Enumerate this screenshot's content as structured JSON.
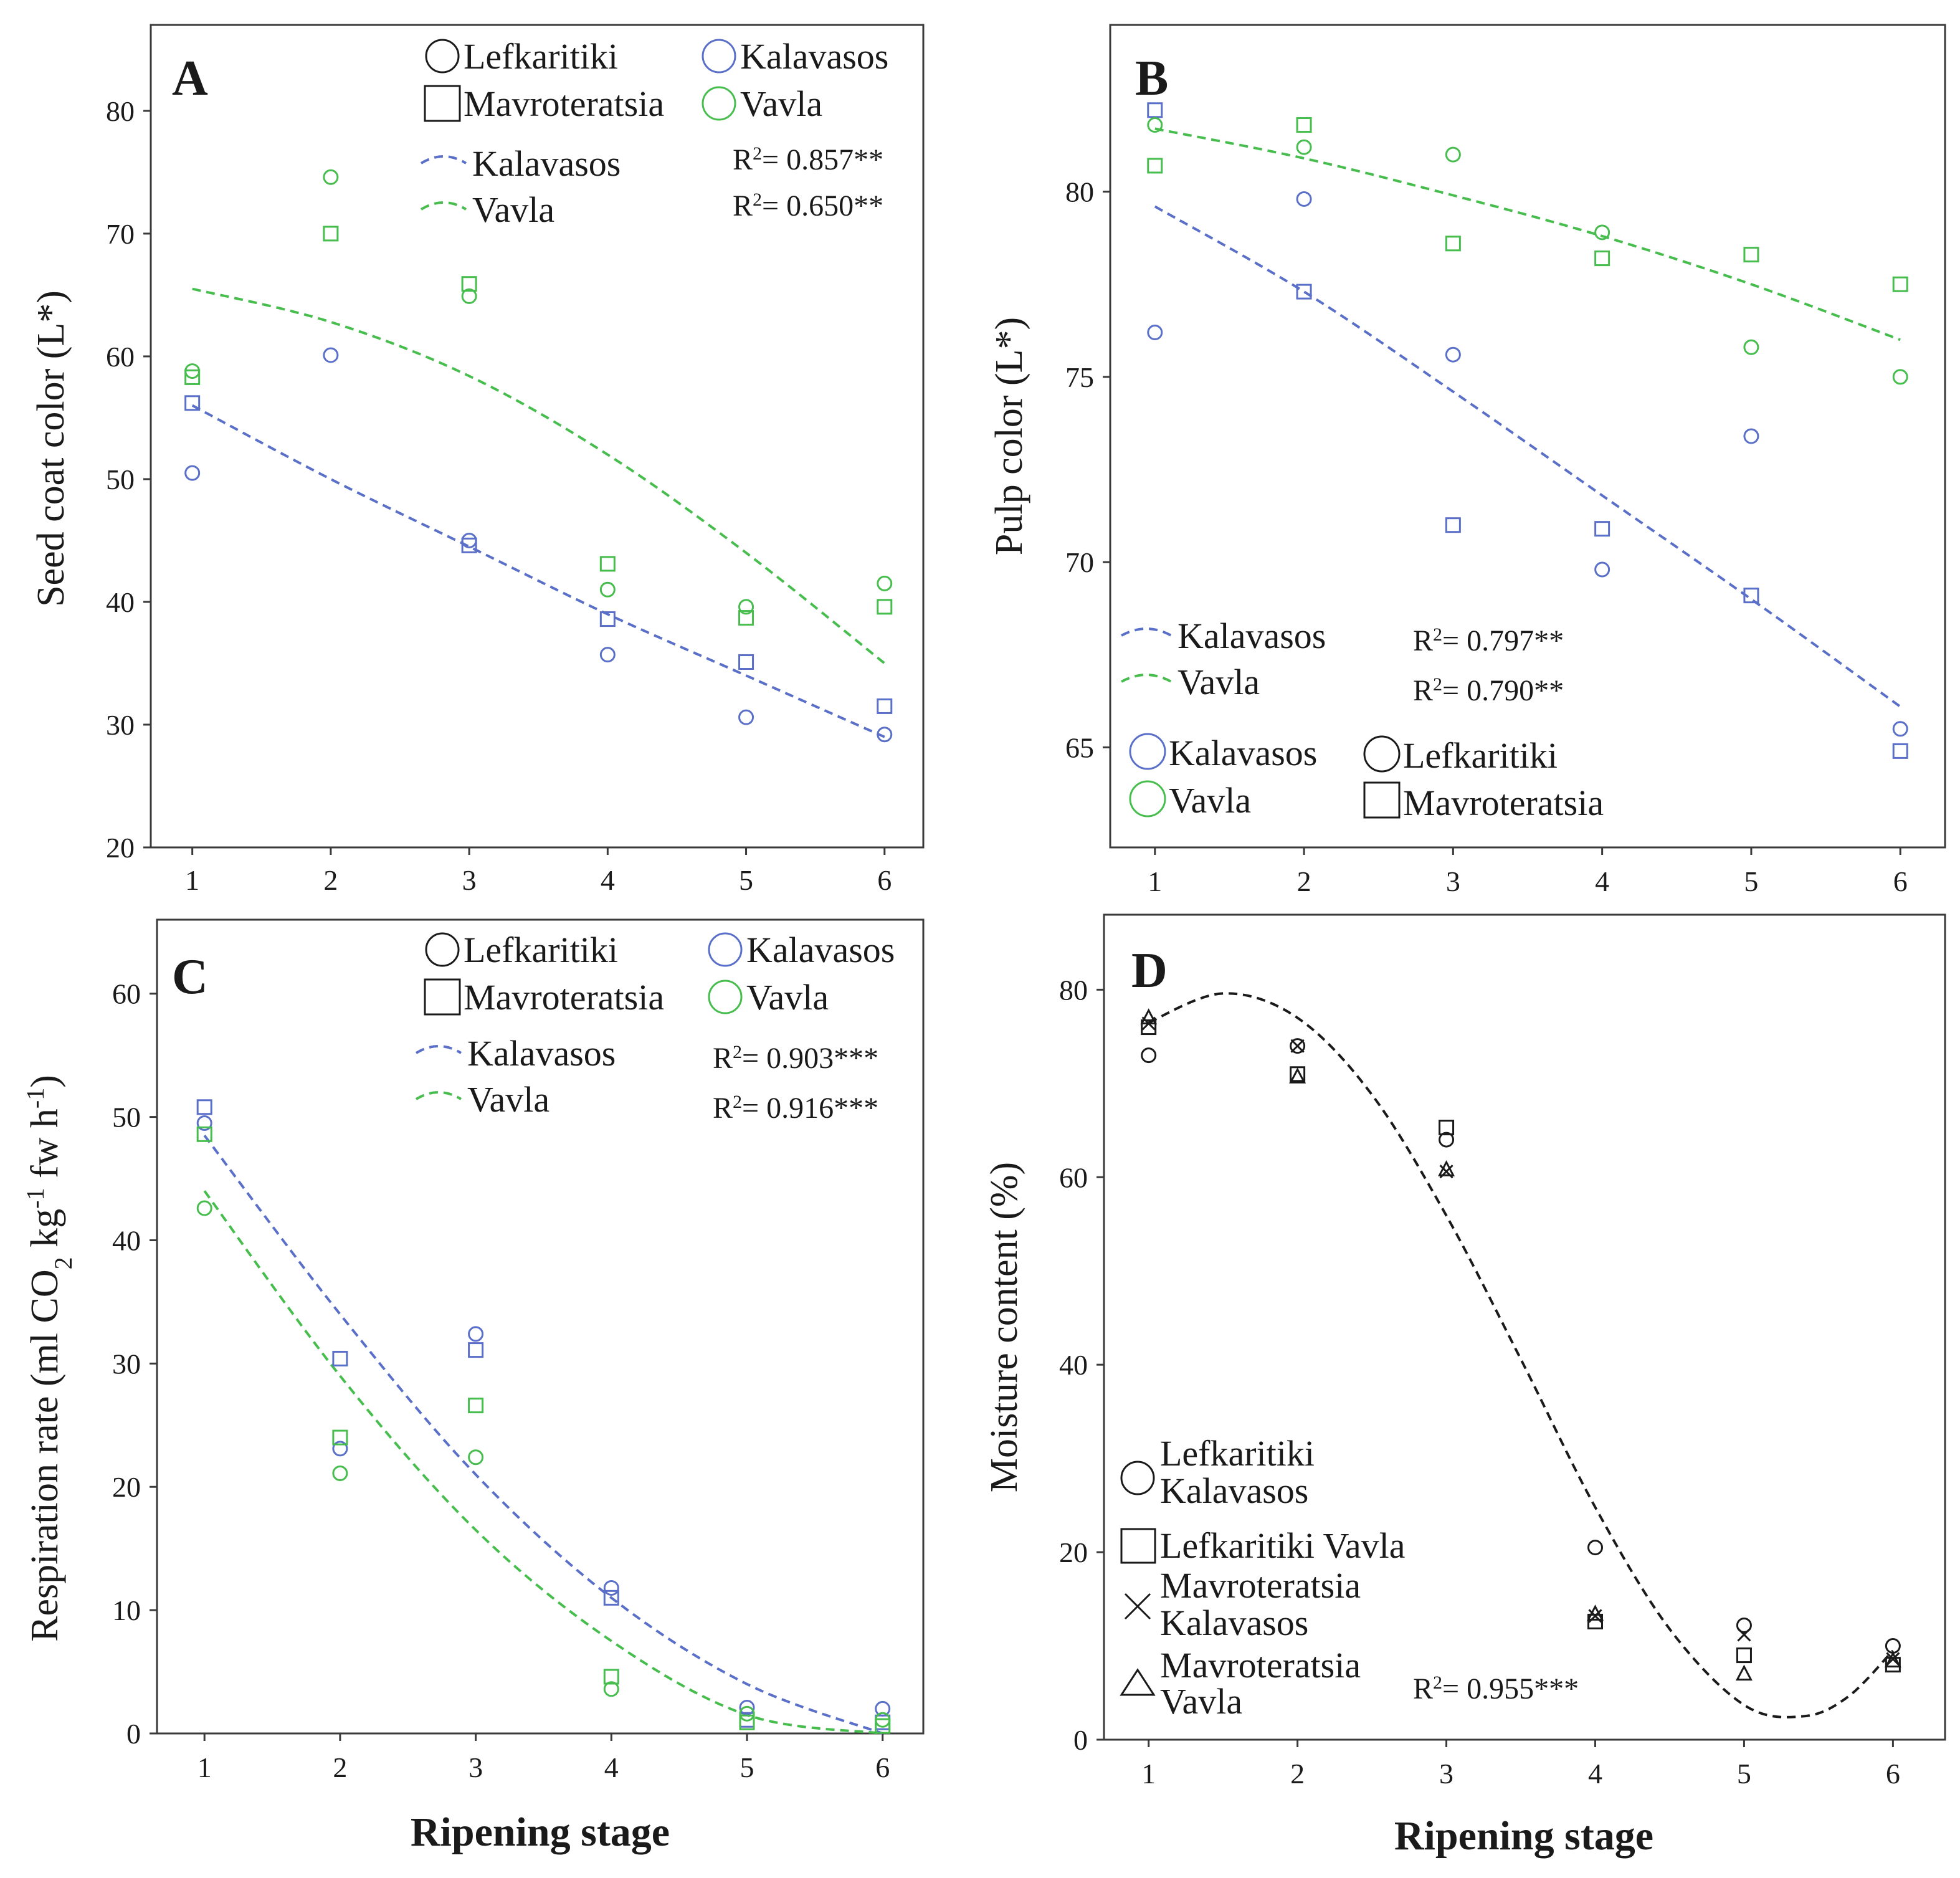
{
  "colors": {
    "kalavasos": "#5a6fc8",
    "vavla": "#46bd4d",
    "black": "#1a1a1a"
  },
  "chart_data": [
    {
      "id": "A",
      "type": "scatter",
      "panel_label": "A",
      "xlabel": "",
      "ylabel": "Seed coat color (L*)",
      "xlim": [
        0.7,
        6.28
      ],
      "ylim": [
        20,
        87
      ],
      "xticks": [
        "1",
        "2",
        "3",
        "4",
        "5",
        "6"
      ],
      "yticks": [
        "20",
        "30",
        "40",
        "50",
        "60",
        "70",
        "80"
      ],
      "series": [
        {
          "name": "Kalavasos Lefkaritiki",
          "marker": "circle",
          "color": "kalavasos",
          "x": [
            1,
            2,
            3,
            4,
            5,
            6
          ],
          "y": [
            50.5,
            60.1,
            45.0,
            35.7,
            30.6,
            29.2
          ]
        },
        {
          "name": "Kalavasos Mavroteratsia",
          "marker": "square",
          "color": "kalavasos",
          "x": [
            1,
            3,
            4,
            5,
            6
          ],
          "y": [
            56.2,
            44.6,
            38.6,
            35.1,
            31.5
          ]
        },
        {
          "name": "Vavla Lefkaritiki",
          "marker": "circle",
          "color": "vavla",
          "x": [
            1,
            2,
            3,
            4,
            5,
            6
          ],
          "y": [
            58.8,
            74.6,
            64.9,
            41.0,
            39.6,
            41.5
          ]
        },
        {
          "name": "Vavla Mavroteratsia",
          "marker": "square",
          "color": "vavla",
          "x": [
            1,
            2,
            3,
            4,
            5,
            6
          ],
          "y": [
            58.3,
            70.0,
            65.9,
            43.1,
            38.7,
            39.6
          ]
        }
      ],
      "fits": [
        {
          "name": "Kalavasos",
          "color": "kalavasos",
          "x": [
            1,
            2,
            3,
            4,
            5,
            6
          ],
          "y": [
            56.0,
            50.0,
            44.5,
            39.0,
            34.0,
            29.0
          ]
        },
        {
          "name": "Vavla",
          "color": "vavla",
          "x": [
            1,
            2,
            3,
            4,
            5,
            6
          ],
          "y": [
            65.5,
            62.8,
            58.4,
            52.0,
            44.0,
            35.0
          ]
        }
      ],
      "legend_markers": [
        {
          "label": "Lefkaritiki",
          "marker": "circle",
          "color": "black"
        },
        {
          "label": "Kalavasos",
          "marker": "circle",
          "color": "kalavasos"
        },
        {
          "label": "Mavroteratsia",
          "marker": "square",
          "color": "black"
        },
        {
          "label": "Vavla",
          "marker": "circle",
          "color": "vavla"
        }
      ],
      "legend_fits": [
        {
          "label": "Kalavasos",
          "color": "kalavasos",
          "r2_base": "R",
          "r2_sup": "2",
          "r2_tail": "= 0.857**"
        },
        {
          "label": "Vavla",
          "color": "vavla",
          "r2_base": "R",
          "r2_sup": "2",
          "r2_tail": "= 0.650**"
        }
      ]
    },
    {
      "id": "B",
      "type": "scatter",
      "panel_label": "B",
      "xlabel": "",
      "ylabel": "Pulp color (L*)",
      "xlim": [
        0.7,
        6.3
      ],
      "ylim": [
        62.3,
        84.5
      ],
      "xticks": [
        "1",
        "2",
        "3",
        "4",
        "5",
        "6"
      ],
      "yticks": [
        "65",
        "70",
        "75",
        "80"
      ],
      "series": [
        {
          "name": "Kalavasos Lefkaritiki",
          "marker": "circle",
          "color": "kalavasos",
          "x": [
            1,
            2,
            3,
            4,
            5,
            6
          ],
          "y": [
            76.2,
            79.8,
            75.6,
            69.8,
            73.4,
            65.5
          ]
        },
        {
          "name": "Kalavasos Mavroteratsia",
          "marker": "square",
          "color": "kalavasos",
          "x": [
            1,
            2,
            3,
            4,
            5,
            6
          ],
          "y": [
            82.2,
            77.3,
            71.0,
            70.9,
            69.1,
            64.9
          ]
        },
        {
          "name": "Vavla Lefkaritiki",
          "marker": "circle",
          "color": "vavla",
          "x": [
            1,
            2,
            3,
            4,
            5,
            6
          ],
          "y": [
            81.8,
            81.2,
            81.0,
            78.9,
            75.8,
            75.0
          ]
        },
        {
          "name": "Vavla Mavroteratsia",
          "marker": "square",
          "color": "vavla",
          "x": [
            1,
            2,
            3,
            4,
            5,
            6
          ],
          "y": [
            80.7,
            81.8,
            78.6,
            78.2,
            78.3,
            77.5
          ]
        }
      ],
      "fits": [
        {
          "name": "Kalavasos",
          "color": "kalavasos",
          "x": [
            1,
            2,
            3,
            4,
            5,
            6
          ],
          "y": [
            79.6,
            77.3,
            74.6,
            71.8,
            69.0,
            66.1
          ]
        },
        {
          "name": "Vavla",
          "color": "vavla",
          "x": [
            1,
            2,
            3,
            4,
            5,
            6
          ],
          "y": [
            81.7,
            80.9,
            79.9,
            78.8,
            77.5,
            76.0
          ]
        }
      ],
      "legend_fits": [
        {
          "label": "Kalavasos",
          "color": "kalavasos",
          "r2_base": "R",
          "r2_sup": "2",
          "r2_tail": "= 0.797**"
        },
        {
          "label": "Vavla",
          "color": "vavla",
          "r2_base": "R",
          "r2_sup": "2",
          "r2_tail": "= 0.790**"
        }
      ],
      "legend_markers": [
        {
          "label": "Kalavasos",
          "marker": "circle",
          "color": "kalavasos"
        },
        {
          "label": "Lefkaritiki",
          "marker": "circle",
          "color": "black"
        },
        {
          "label": "Vavla",
          "marker": "circle",
          "color": "vavla"
        },
        {
          "label": "Mavroteratsia",
          "marker": "square",
          "color": "black"
        }
      ]
    },
    {
      "id": "C",
      "type": "scatter",
      "panel_label": "C",
      "xlabel": "Ripening stage",
      "ylabel_parts": [
        "Respiration rate (ml CO",
        "2",
        " kg",
        "-1",
        " fw h",
        "-1",
        ")"
      ],
      "xlim": [
        0.65,
        6.3
      ],
      "ylim": [
        0,
        66
      ],
      "xticks": [
        "1",
        "2",
        "3",
        "4",
        "5",
        "6"
      ],
      "yticks": [
        "0",
        "10",
        "20",
        "30",
        "40",
        "50",
        "60"
      ],
      "series": [
        {
          "name": "Kalavasos Lefkaritiki",
          "marker": "circle",
          "color": "kalavasos",
          "x": [
            1,
            2,
            3,
            4,
            5,
            6
          ],
          "y": [
            49.5,
            23.1,
            32.4,
            11.8,
            2.1,
            2.0
          ]
        },
        {
          "name": "Kalavasos Mavroteratsia",
          "marker": "square",
          "color": "kalavasos",
          "x": [
            1,
            2,
            3,
            4,
            5,
            6
          ],
          "y": [
            50.8,
            30.4,
            31.1,
            11.0,
            1.1,
            0.9
          ]
        },
        {
          "name": "Vavla Lefkaritiki",
          "marker": "circle",
          "color": "vavla",
          "x": [
            1,
            2,
            3,
            4,
            5,
            6
          ],
          "y": [
            42.6,
            21.1,
            22.4,
            3.6,
            1.6,
            1.1
          ]
        },
        {
          "name": "Vavla Mavroteratsia",
          "marker": "square",
          "color": "vavla",
          "x": [
            1,
            2,
            3,
            4,
            5,
            6
          ],
          "y": [
            48.6,
            24.0,
            26.6,
            4.6,
            0.9,
            0.6
          ]
        }
      ],
      "fits": [
        {
          "name": "Kalavasos",
          "color": "kalavasos",
          "x": [
            1,
            2,
            3,
            4,
            5,
            6
          ],
          "y": [
            48.5,
            34.0,
            21.0,
            11.0,
            4.0,
            0.0
          ]
        },
        {
          "name": "Vavla",
          "color": "vavla",
          "x": [
            1,
            2,
            3,
            4,
            5,
            6
          ],
          "y": [
            44.0,
            29.0,
            16.5,
            7.5,
            1.5,
            0.0
          ]
        }
      ],
      "legend_markers": [
        {
          "label": "Lefkaritiki",
          "marker": "circle",
          "color": "black"
        },
        {
          "label": "Kalavasos",
          "marker": "circle",
          "color": "kalavasos"
        },
        {
          "label": "Mavroteratsia",
          "marker": "square",
          "color": "black"
        },
        {
          "label": "Vavla",
          "marker": "circle",
          "color": "vavla"
        }
      ],
      "legend_fits": [
        {
          "label": "Kalavasos",
          "color": "kalavasos",
          "r2_base": "R",
          "r2_sup": "2",
          "r2_tail": "= 0.903***"
        },
        {
          "label": "Vavla",
          "color": "vavla",
          "r2_base": "R",
          "r2_sup": "2",
          "r2_tail": "= 0.916***"
        }
      ]
    },
    {
      "id": "D",
      "type": "scatter",
      "panel_label": "D",
      "xlabel": "Ripening stage",
      "ylabel": "Moisture content  (%)",
      "xlim": [
        0.7,
        6.35
      ],
      "ylim": [
        0,
        88
      ],
      "xticks": [
        "1",
        "2",
        "3",
        "4",
        "5",
        "6"
      ],
      "yticks": [
        "0",
        "20",
        "40",
        "60",
        "80"
      ],
      "series": [
        {
          "name": "Lefkaritiki Kalavasos",
          "marker": "circle",
          "color": "black",
          "x": [
            1,
            2,
            3,
            4,
            5,
            6
          ],
          "y": [
            73.0,
            74.0,
            64.0,
            20.5,
            12.2,
            10.0
          ]
        },
        {
          "name": "Lefkaritiki Vavla",
          "marker": "square",
          "color": "black",
          "x": [
            1,
            2,
            3,
            4,
            5,
            6
          ],
          "y": [
            76.0,
            71.0,
            65.3,
            12.6,
            9.0,
            8.0
          ]
        },
        {
          "name": "Mavroteratsia Kalavasos",
          "marker": "x",
          "color": "black",
          "x": [
            1,
            2,
            3,
            4,
            5,
            6
          ],
          "y": [
            76.4,
            74.0,
            60.6,
            13.2,
            11.2,
            8.6
          ]
        },
        {
          "name": "Mavroteratsia Vavla",
          "marker": "triangle",
          "color": "black",
          "x": [
            1,
            2,
            3,
            4,
            5,
            6
          ],
          "y": [
            77.0,
            70.7,
            60.8,
            13.4,
            7.0,
            8.4
          ]
        }
      ],
      "fits": [
        {
          "name": "Cubic fit",
          "color": "black",
          "x": [
            1.0,
            1.5,
            2.0,
            2.5,
            3.0,
            3.5,
            4.0,
            4.5,
            5.0,
            5.4,
            5.7,
            6.0
          ],
          "y": [
            76.5,
            79.6,
            77.0,
            68.8,
            55.9,
            40.6,
            24.8,
            11.8,
            3.7,
            2.5,
            4.6,
            9.5
          ]
        }
      ],
      "legend_markers": [
        {
          "label_lines": [
            "Lefkaritiki",
            "Kalavasos"
          ],
          "marker": "circle",
          "color": "black"
        },
        {
          "label_lines": [
            "Lefkaritiki Vavla"
          ],
          "marker": "square",
          "color": "black"
        },
        {
          "label_lines": [
            "Mavroteratsia",
            "Kalavasos"
          ],
          "marker": "x",
          "color": "black"
        },
        {
          "label_lines": [
            "Mavroteratsia",
            "Vavla"
          ],
          "marker": "triangle",
          "color": "black"
        }
      ],
      "legend_fits": [
        {
          "label": "",
          "color": "black",
          "r2_base": "R",
          "r2_sup": "2",
          "r2_tail": "= 0.955***"
        }
      ]
    }
  ]
}
